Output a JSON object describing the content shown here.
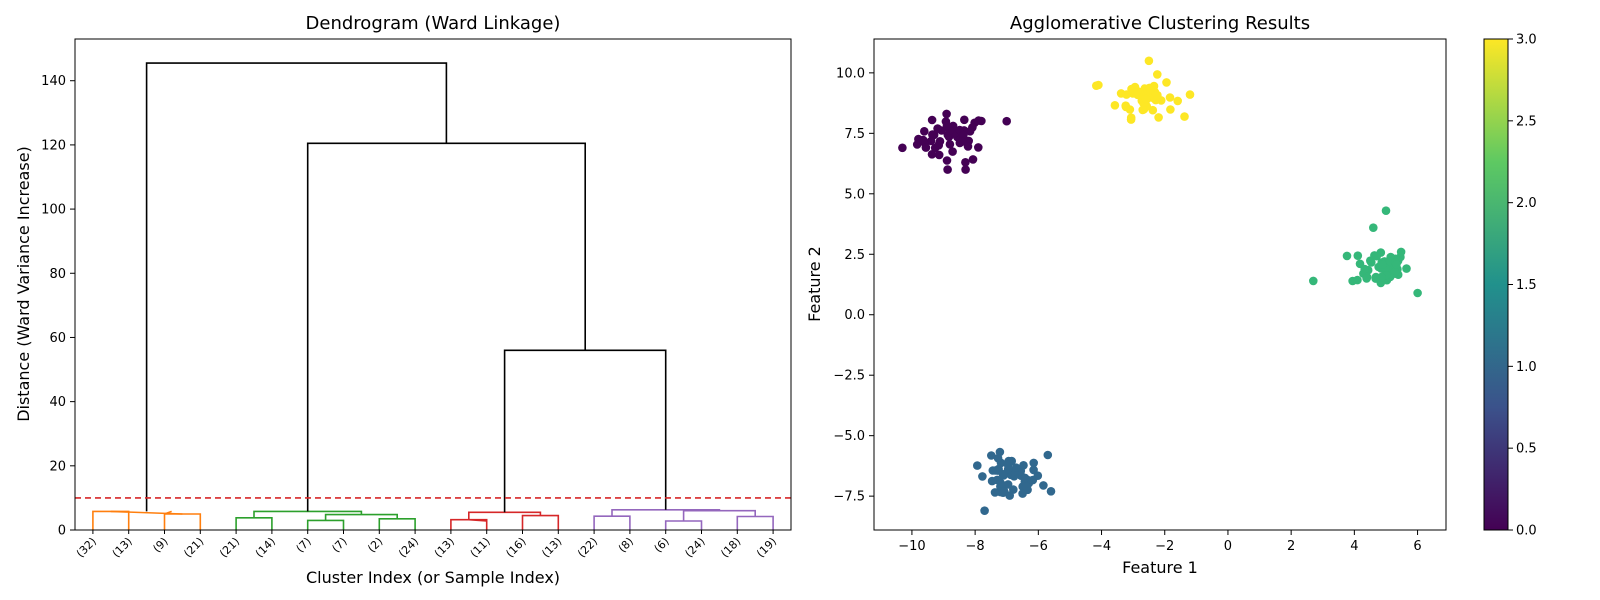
{
  "chart_data": [
    {
      "type": "dendrogram",
      "title": "Dendrogram (Ward Linkage)",
      "xlabel": "Cluster Index (or Sample Index)",
      "ylabel": "Distance (Ward Variance Increase)",
      "ylim": [
        0,
        153
      ],
      "yticks": [
        0,
        20,
        40,
        60,
        80,
        100,
        120,
        140
      ],
      "leaf_labels": [
        "(32)",
        "(13)",
        "(9)",
        "(21)",
        "(21)",
        "(14)",
        "(7)",
        "(7)",
        "(2)",
        "(24)",
        "(13)",
        "(11)",
        "(16)",
        "(13)",
        "(22)",
        "(8)",
        "(6)",
        "(24)",
        "(18)",
        "(19)"
      ],
      "threshold": 10,
      "threshold_color": "#d62728",
      "links": [
        {
          "x": [
            5,
            5,
            15,
            15
          ],
          "y": [
            0,
            5.8,
            5.8,
            0
          ],
          "color": "#ff7f0e"
        },
        {
          "x": [
            25,
            25,
            35,
            35
          ],
          "y": [
            0,
            5.0,
            5.0,
            0
          ],
          "color": "#ff7f0e"
        },
        {
          "x": [
            10,
            10,
            30,
            30
          ],
          "y": [
            5.8,
            5.8,
            5.0,
            5.0
          ],
          "color": "#ff7f0e"
        },
        {
          "x": [
            45,
            45,
            55,
            55
          ],
          "y": [
            0,
            3.8,
            3.8,
            0
          ],
          "color": "#2ca02c"
        },
        {
          "x": [
            65,
            65,
            75,
            75
          ],
          "y": [
            0,
            3.0,
            3.0,
            0
          ],
          "color": "#2ca02c"
        },
        {
          "x": [
            85,
            85,
            95,
            95
          ],
          "y": [
            0,
            3.5,
            3.5,
            0
          ],
          "color": "#2ca02c"
        },
        {
          "x": [
            70,
            70,
            90,
            90
          ],
          "y": [
            3.0,
            4.8,
            4.8,
            3.5
          ],
          "color": "#2ca02c"
        },
        {
          "x": [
            50,
            50,
            80,
            80
          ],
          "y": [
            3.8,
            5.8,
            5.8,
            4.8
          ],
          "color": "#2ca02c"
        },
        {
          "x": [
            105,
            105,
            115,
            115
          ],
          "y": [
            0,
            3.2,
            3.2,
            0
          ],
          "color": "#d62728"
        },
        {
          "x": [
            125,
            125,
            135,
            135
          ],
          "y": [
            0,
            4.5,
            4.5,
            0
          ],
          "color": "#d62728"
        },
        {
          "x": [
            110,
            110,
            130,
            130
          ],
          "y": [
            3.2,
            5.5,
            5.5,
            4.5
          ],
          "color": "#d62728"
        },
        {
          "x": [
            145,
            145,
            155,
            155
          ],
          "y": [
            0,
            4.3,
            4.3,
            0
          ],
          "color": "#9467bd"
        },
        {
          "x": [
            165,
            165,
            175,
            175
          ],
          "y": [
            0,
            2.8,
            2.8,
            0
          ],
          "color": "#9467bd"
        },
        {
          "x": [
            185,
            185,
            195,
            195
          ],
          "y": [
            0,
            4.2,
            4.2,
            0
          ],
          "color": "#9467bd"
        },
        {
          "x": [
            170,
            170,
            190,
            190
          ],
          "y": [
            2.8,
            6.0,
            6.0,
            4.2
          ],
          "color": "#9467bd"
        },
        {
          "x": [
            150,
            150,
            180,
            180
          ],
          "y": [
            4.3,
            6.3,
            6.3,
            6.0
          ],
          "color": "#9467bd"
        },
        {
          "x": [
            120,
            120,
            165,
            165
          ],
          "y": [
            5.5,
            56,
            56,
            6.3
          ],
          "color": "#000000"
        },
        {
          "x": [
            65,
            65,
            142.5,
            142.5
          ],
          "y": [
            5.8,
            120.5,
            120.5,
            56
          ],
          "color": "#000000"
        },
        {
          "x": [
            20,
            20,
            103.75,
            103.75
          ],
          "y": [
            5.8,
            145.5,
            145.5,
            120.5
          ],
          "color": "#000000"
        }
      ],
      "extra_segments": [
        {
          "x": [
            25,
            27
          ],
          "y": [
            5.0,
            5.8
          ],
          "color": "#ff7f0e"
        },
        {
          "x": [
            110,
            115
          ],
          "y": [
            3.2,
            2.8
          ],
          "color": "#d62728"
        }
      ]
    },
    {
      "type": "scatter",
      "title": "Agglomerative Clustering Results",
      "xlabel": "Feature 1",
      "ylabel": "Feature 2",
      "xlim": [
        -11.2,
        6.9
      ],
      "ylim": [
        -8.9,
        11.4
      ],
      "xticks": [
        -10,
        -8,
        -6,
        -4,
        -2,
        0,
        2,
        4,
        6
      ],
      "yticks": [
        -7.5,
        -5.0,
        -2.5,
        0.0,
        2.5,
        5.0,
        7.5,
        10.0
      ],
      "xtick_labels": [
        "−10",
        "−8",
        "−6",
        "−4",
        "−2",
        "0",
        "2",
        "4",
        "6"
      ],
      "ytick_labels": [
        "−7.5",
        "−5.0",
        "−2.5",
        "0.0",
        "2.5",
        "5.0",
        "7.5",
        "10.0"
      ],
      "clusters": [
        {
          "label": 0,
          "color": "#440154",
          "center": [
            -8.7,
            7.3
          ],
          "n": 50,
          "spread": 0.55,
          "outliers": [
            [
              -7.0,
              8.0
            ],
            [
              -10.3,
              6.9
            ],
            [
              -8.3,
              6.0
            ]
          ]
        },
        {
          "label": 1,
          "color": "#31688e",
          "center": [
            -6.9,
            -6.8
          ],
          "n": 50,
          "spread": 0.5,
          "outliers": [
            [
              -7.7,
              -8.1
            ],
            [
              -5.7,
              -5.8
            ],
            [
              -5.6,
              -7.3
            ]
          ]
        },
        {
          "label": 2,
          "color": "#35b779",
          "center": [
            4.8,
            2.0
          ],
          "n": 50,
          "spread": 0.45,
          "outliers": [
            [
              2.7,
              1.4
            ],
            [
              5.0,
              4.3
            ],
            [
              6.0,
              0.9
            ],
            [
              4.6,
              3.6
            ]
          ]
        },
        {
          "label": 3,
          "color": "#fde725",
          "center": [
            -2.6,
            9.0
          ],
          "n": 50,
          "spread": 0.45,
          "outliers": [
            [
              -4.1,
              9.5
            ],
            [
              -2.5,
              10.5
            ],
            [
              -1.2,
              9.1
            ]
          ]
        }
      ],
      "colorbar": {
        "min": 0.0,
        "max": 3.0,
        "ticks": [
          "0.0",
          "0.5",
          "1.0",
          "1.5",
          "2.0",
          "2.5",
          "3.0"
        ],
        "colors": [
          "#440154",
          "#3b528b",
          "#21918c",
          "#5ec962",
          "#fde725"
        ]
      }
    }
  ]
}
